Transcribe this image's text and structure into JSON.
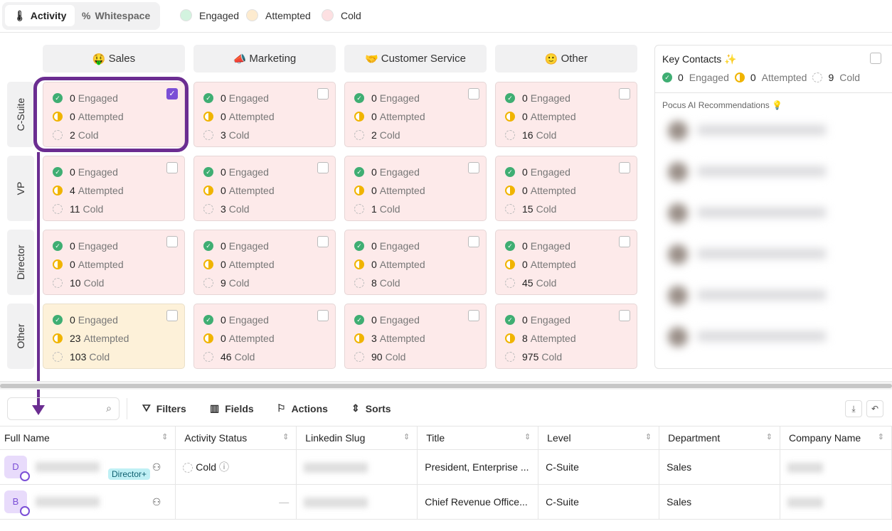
{
  "tabs": [
    {
      "label": "Activity",
      "icon": "thermometer-icon",
      "active": true
    },
    {
      "label": "Whitespace",
      "icon": "percent-icon",
      "active": false
    }
  ],
  "legend": [
    {
      "label": "Engaged",
      "color": "#d3f3df"
    },
    {
      "label": "Attempted",
      "color": "#fdebcf"
    },
    {
      "label": "Cold",
      "color": "#fde0e2"
    }
  ],
  "columns": [
    {
      "emoji": "🤑",
      "label": "Sales"
    },
    {
      "emoji": "📣",
      "label": "Marketing"
    },
    {
      "emoji": "🤝",
      "label": "Customer Service"
    },
    {
      "emoji": "🙂",
      "label": "Other"
    }
  ],
  "rows": [
    "C-Suite",
    "VP",
    "Director",
    "Other"
  ],
  "status_labels": {
    "engaged": "Engaged",
    "attempted": "Attempted",
    "cold": "Cold"
  },
  "grid": [
    [
      {
        "e": "0",
        "a": "0",
        "c": "2",
        "checked": true
      },
      {
        "e": "0",
        "a": "0",
        "c": "3"
      },
      {
        "e": "0",
        "a": "0",
        "c": "2"
      },
      {
        "e": "0",
        "a": "0",
        "c": "16"
      }
    ],
    [
      {
        "e": "0",
        "a": "4",
        "c": "11"
      },
      {
        "e": "0",
        "a": "0",
        "c": "3"
      },
      {
        "e": "0",
        "a": "0",
        "c": "1"
      },
      {
        "e": "0",
        "a": "0",
        "c": "15"
      }
    ],
    [
      {
        "e": "0",
        "a": "0",
        "c": "10"
      },
      {
        "e": "0",
        "a": "0",
        "c": "9"
      },
      {
        "e": "0",
        "a": "0",
        "c": "8"
      },
      {
        "e": "0",
        "a": "0",
        "c": "45"
      }
    ],
    [
      {
        "e": "0",
        "a": "23",
        "c": "103",
        "amber": true
      },
      {
        "e": "0",
        "a": "0",
        "c": "46"
      },
      {
        "e": "0",
        "a": "3",
        "c": "90"
      },
      {
        "e": "0",
        "a": "8",
        "c": "975"
      }
    ]
  ],
  "key_contacts": {
    "title": "Key Contacts ✨",
    "engaged": "0",
    "attempted": "0",
    "cold": "9",
    "subtitle": "Pocus AI Recommendations"
  },
  "toolbar": {
    "filters": "Filters",
    "fields": "Fields",
    "actions": "Actions",
    "sorts": "Sorts",
    "search_placeholder": ""
  },
  "table": {
    "headers": [
      "Full Name",
      "Activity Status",
      "Linkedin Slug",
      "Title",
      "Level",
      "Department",
      "Company Name"
    ],
    "rows": [
      {
        "initial": "D",
        "tag": "Director+",
        "status": "Cold",
        "title": "President, Enterprise ...",
        "level": "C-Suite",
        "department": "Sales"
      },
      {
        "initial": "B",
        "tag": "",
        "status": "—",
        "title": "Chief Revenue Office...",
        "level": "C-Suite",
        "department": "Sales"
      }
    ]
  }
}
